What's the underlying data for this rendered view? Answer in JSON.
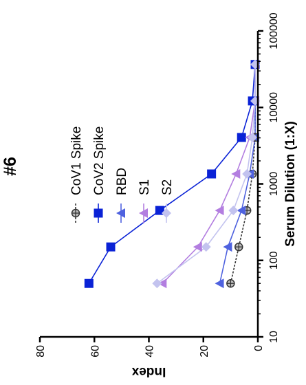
{
  "chart_data": {
    "type": "line",
    "title": "#6",
    "xlabel": "Serum Dilution (1:X)",
    "ylabel": "Index",
    "x_scale": "log",
    "xlim": [
      10,
      100000
    ],
    "ylim": [
      0,
      80
    ],
    "x_ticks": [
      "10",
      "100",
      "1000",
      "10000",
      "100000"
    ],
    "y_ticks": [
      "0",
      "20",
      "40",
      "60",
      "80"
    ],
    "grid": false,
    "legend_position": "right",
    "orientation": "rotated 90° clockwise",
    "series": [
      {
        "name": "CoV1 Spike",
        "color": "#333333",
        "marker": "crossed-circle",
        "line_style": "dashed",
        "x": [
          50,
          150,
          450,
          1350,
          4050,
          12150,
          36450
        ],
        "y": [
          10,
          7,
          4,
          2,
          1,
          1,
          1
        ]
      },
      {
        "name": "CoV2 Spike",
        "color": "#0a22d6",
        "marker": "square",
        "line_style": "solid",
        "x": [
          50,
          150,
          450,
          1350,
          4050,
          12150,
          36450
        ],
        "y": [
          62,
          54,
          36,
          17,
          6,
          2,
          1
        ]
      },
      {
        "name": "RBD",
        "color": "#4f62df",
        "marker": "triangle",
        "line_style": "solid",
        "x": [
          50,
          150,
          450,
          1350,
          4050,
          12150,
          36450
        ],
        "y": [
          14,
          11,
          6,
          3,
          1,
          1,
          1
        ]
      },
      {
        "name": "S1",
        "color": "#b37ee0",
        "marker": "triangle",
        "line_style": "solid",
        "x": [
          50,
          150,
          450,
          1350,
          4050,
          12150,
          36450
        ],
        "y": [
          35,
          22,
          14,
          8,
          3,
          1,
          1
        ]
      },
      {
        "name": "S2",
        "color": "#c3c3ef",
        "marker": "diamond",
        "line_style": "solid",
        "x": [
          50,
          150,
          450,
          1350,
          4050,
          12150,
          36450
        ],
        "y": [
          37,
          19,
          9,
          4,
          2,
          1,
          1
        ]
      }
    ]
  }
}
